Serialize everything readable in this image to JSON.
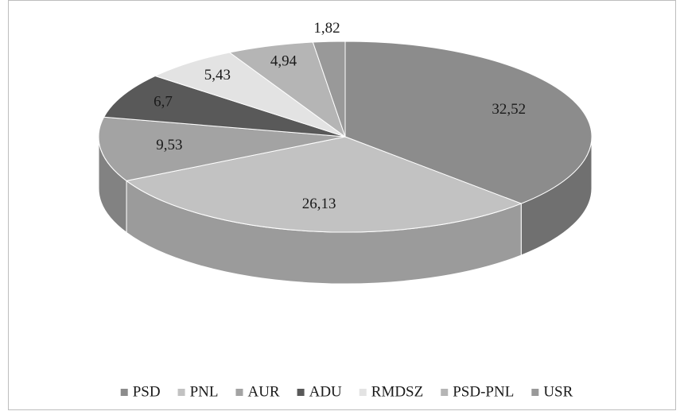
{
  "chart_data": {
    "type": "pie",
    "categories": [
      "PSD",
      "PNL",
      "AUR",
      "ADU",
      "RMDSZ",
      "PSD-PNL",
      "USR"
    ],
    "values": [
      32.52,
      26.13,
      9.53,
      6.7,
      5.43,
      4.94,
      1.82
    ],
    "value_labels": [
      "32,52",
      "26,13",
      "9,53",
      "6,7",
      "5,43",
      "4,94",
      "1,82"
    ],
    "colors": [
      "#8c8c8c",
      "#c2c2c2",
      "#a3a3a3",
      "#595959",
      "#e3e3e3",
      "#b5b5b5",
      "#999999"
    ],
    "legend": "bottom"
  }
}
